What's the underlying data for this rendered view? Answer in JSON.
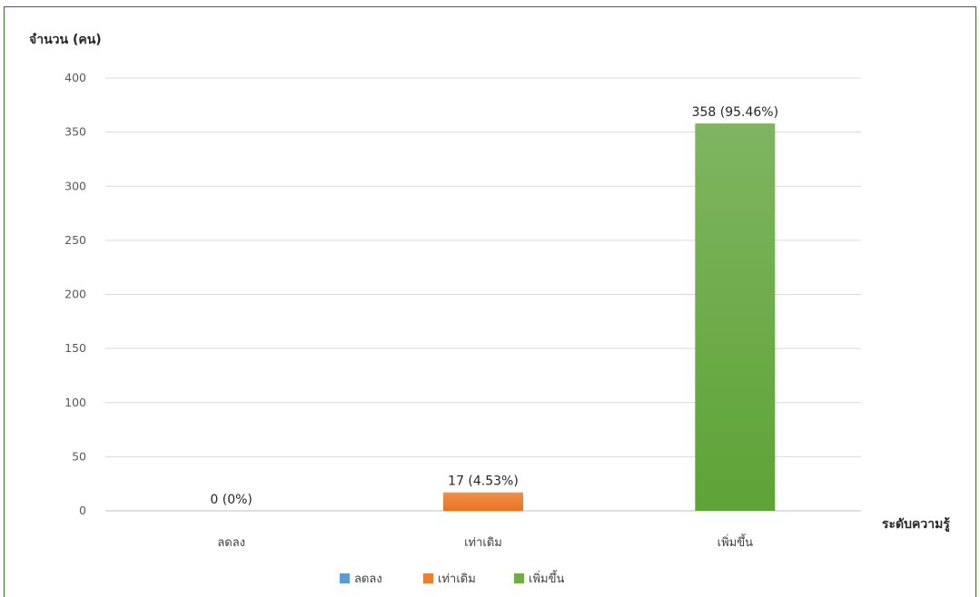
{
  "chart_data": {
    "type": "bar",
    "ylabel": "จำนวน (คน)",
    "xlabel": "ระดับความรู้",
    "ylim": [
      0,
      400
    ],
    "yticks": [
      0,
      50,
      100,
      150,
      200,
      250,
      300,
      350,
      400
    ],
    "categories": [
      "ลดลง",
      "เท่าเดิม",
      "เพิ่มขึ้น"
    ],
    "values": [
      0,
      17,
      358
    ],
    "data_labels": [
      "0 (0%)",
      "17 (4.53%)",
      "358 (95.46%)"
    ],
    "colors": [
      "#5b9bd5",
      "#ed7d31",
      "#70ad47"
    ],
    "grid": true,
    "legend_position": "bottom",
    "legend": [
      "ลดลง",
      "เท่าเดิม",
      "เพิ่มขึ้น"
    ]
  }
}
